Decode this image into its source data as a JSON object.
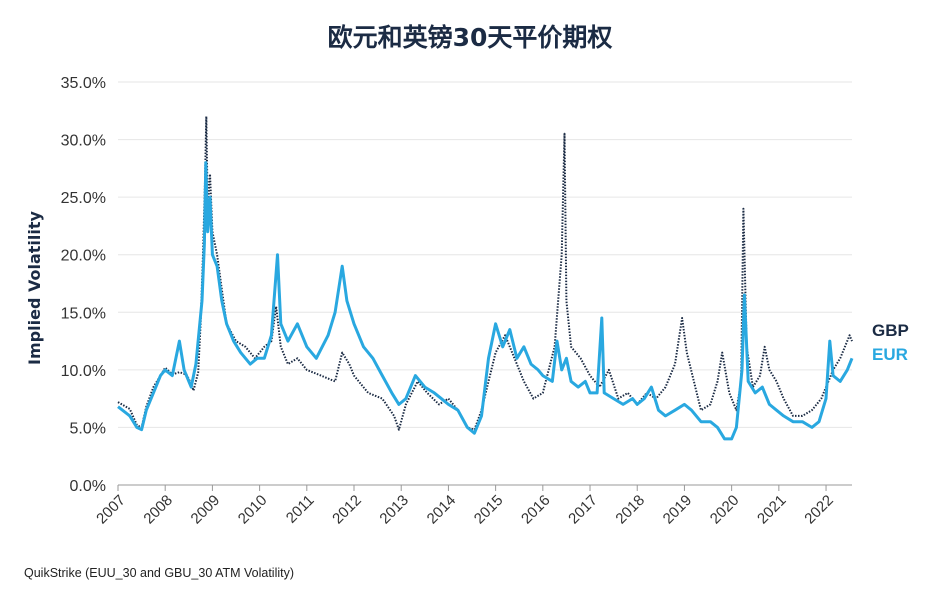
{
  "chart_data": {
    "type": "line",
    "title": "欧元和英镑30天平价期权",
    "ylabel": "Implied Volatility",
    "xlabel": "",
    "ylim": [
      0,
      35
    ],
    "xlim": [
      2007,
      2022.55
    ],
    "y_ticks": [
      "0.0%",
      "5.0%",
      "10.0%",
      "15.0%",
      "20.0%",
      "25.0%",
      "30.0%",
      "35.0%"
    ],
    "x_ticks": [
      "2007",
      "2008",
      "2009",
      "2010",
      "2011",
      "2012",
      "2013",
      "2014",
      "2015",
      "2016",
      "2017",
      "2018",
      "2019",
      "2020",
      "2021",
      "2022"
    ],
    "grid": "horizontal",
    "legend": "right",
    "series": [
      {
        "name": "GBP",
        "color": "#1b2b44",
        "style": "dotted",
        "points": [
          [
            2007.0,
            7.2
          ],
          [
            2007.25,
            6.6
          ],
          [
            2007.4,
            5.2
          ],
          [
            2007.5,
            5.0
          ],
          [
            2007.6,
            6.8
          ],
          [
            2007.75,
            8.5
          ],
          [
            2007.9,
            9.5
          ],
          [
            2008.0,
            10.2
          ],
          [
            2008.15,
            9.6
          ],
          [
            2008.3,
            9.8
          ],
          [
            2008.45,
            9.6
          ],
          [
            2008.55,
            8.8
          ],
          [
            2008.6,
            8.2
          ],
          [
            2008.7,
            9.8
          ],
          [
            2008.75,
            14.0
          ],
          [
            2008.8,
            20.0
          ],
          [
            2008.84,
            26.0
          ],
          [
            2008.87,
            32.0
          ],
          [
            2008.9,
            24.0
          ],
          [
            2008.95,
            27.0
          ],
          [
            2009.0,
            22.0
          ],
          [
            2009.1,
            20.0
          ],
          [
            2009.2,
            17.0
          ],
          [
            2009.3,
            14.0
          ],
          [
            2009.5,
            12.5
          ],
          [
            2009.7,
            12.0
          ],
          [
            2009.9,
            11.0
          ],
          [
            2010.1,
            12.0
          ],
          [
            2010.25,
            12.5
          ],
          [
            2010.35,
            15.5
          ],
          [
            2010.45,
            12.0
          ],
          [
            2010.6,
            10.5
          ],
          [
            2010.8,
            11.0
          ],
          [
            2011.0,
            10.0
          ],
          [
            2011.3,
            9.5
          ],
          [
            2011.6,
            9.0
          ],
          [
            2011.75,
            11.5
          ],
          [
            2011.9,
            10.5
          ],
          [
            2012.0,
            9.5
          ],
          [
            2012.3,
            8.0
          ],
          [
            2012.6,
            7.5
          ],
          [
            2012.85,
            6.0
          ],
          [
            2012.95,
            4.8
          ],
          [
            2013.1,
            7.0
          ],
          [
            2013.35,
            9.0
          ],
          [
            2013.55,
            8.0
          ],
          [
            2013.8,
            7.0
          ],
          [
            2014.0,
            7.5
          ],
          [
            2014.2,
            6.5
          ],
          [
            2014.4,
            5.0
          ],
          [
            2014.55,
            4.8
          ],
          [
            2014.7,
            6.5
          ],
          [
            2014.85,
            9.0
          ],
          [
            2015.0,
            11.5
          ],
          [
            2015.2,
            13.0
          ],
          [
            2015.4,
            11.0
          ],
          [
            2015.6,
            9.0
          ],
          [
            2015.8,
            7.5
          ],
          [
            2016.0,
            8.0
          ],
          [
            2016.25,
            12.0
          ],
          [
            2016.4,
            20.0
          ],
          [
            2016.46,
            30.5
          ],
          [
            2016.5,
            16.0
          ],
          [
            2016.6,
            12.0
          ],
          [
            2016.8,
            11.0
          ],
          [
            2017.0,
            9.5
          ],
          [
            2017.2,
            8.5
          ],
          [
            2017.4,
            10.0
          ],
          [
            2017.6,
            7.5
          ],
          [
            2017.8,
            8.0
          ],
          [
            2018.0,
            7.0
          ],
          [
            2018.2,
            8.0
          ],
          [
            2018.4,
            7.5
          ],
          [
            2018.6,
            8.5
          ],
          [
            2018.8,
            10.5
          ],
          [
            2018.95,
            14.5
          ],
          [
            2019.05,
            11.5
          ],
          [
            2019.2,
            9.0
          ],
          [
            2019.35,
            6.5
          ],
          [
            2019.55,
            7.0
          ],
          [
            2019.7,
            9.0
          ],
          [
            2019.8,
            11.5
          ],
          [
            2019.95,
            8.0
          ],
          [
            2020.1,
            6.5
          ],
          [
            2020.2,
            9.0
          ],
          [
            2020.25,
            24.0
          ],
          [
            2020.32,
            12.0
          ],
          [
            2020.45,
            8.5
          ],
          [
            2020.6,
            9.5
          ],
          [
            2020.7,
            12.0
          ],
          [
            2020.8,
            10.0
          ],
          [
            2020.95,
            9.0
          ],
          [
            2021.1,
            7.5
          ],
          [
            2021.3,
            6.0
          ],
          [
            2021.5,
            6.0
          ],
          [
            2021.7,
            6.5
          ],
          [
            2021.9,
            7.5
          ],
          [
            2022.05,
            9.0
          ],
          [
            2022.15,
            10.0
          ],
          [
            2022.3,
            11.0
          ],
          [
            2022.4,
            12.0
          ],
          [
            2022.5,
            13.0
          ],
          [
            2022.55,
            12.5
          ]
        ]
      },
      {
        "name": "EUR",
        "color": "#29a8e0",
        "style": "solid",
        "points": [
          [
            2007.0,
            6.8
          ],
          [
            2007.25,
            6.0
          ],
          [
            2007.4,
            5.0
          ],
          [
            2007.5,
            4.8
          ],
          [
            2007.6,
            6.5
          ],
          [
            2007.75,
            8.0
          ],
          [
            2007.9,
            9.5
          ],
          [
            2008.0,
            10.0
          ],
          [
            2008.15,
            9.5
          ],
          [
            2008.3,
            12.5
          ],
          [
            2008.4,
            10.0
          ],
          [
            2008.55,
            8.5
          ],
          [
            2008.65,
            10.5
          ],
          [
            2008.78,
            16.0
          ],
          [
            2008.83,
            21.0
          ],
          [
            2008.86,
            28.0
          ],
          [
            2008.9,
            22.0
          ],
          [
            2008.95,
            25.0
          ],
          [
            2009.0,
            20.0
          ],
          [
            2009.1,
            19.0
          ],
          [
            2009.2,
            16.0
          ],
          [
            2009.3,
            14.0
          ],
          [
            2009.45,
            12.5
          ],
          [
            2009.6,
            11.5
          ],
          [
            2009.8,
            10.5
          ],
          [
            2009.95,
            11.0
          ],
          [
            2010.1,
            11.0
          ],
          [
            2010.25,
            13.0
          ],
          [
            2010.38,
            20.0
          ],
          [
            2010.45,
            14.0
          ],
          [
            2010.6,
            12.5
          ],
          [
            2010.8,
            14.0
          ],
          [
            2011.0,
            12.0
          ],
          [
            2011.2,
            11.0
          ],
          [
            2011.45,
            13.0
          ],
          [
            2011.6,
            15.0
          ],
          [
            2011.75,
            19.0
          ],
          [
            2011.85,
            16.0
          ],
          [
            2012.0,
            14.0
          ],
          [
            2012.2,
            12.0
          ],
          [
            2012.4,
            11.0
          ],
          [
            2012.6,
            9.5
          ],
          [
            2012.8,
            8.0
          ],
          [
            2012.95,
            7.0
          ],
          [
            2013.1,
            7.5
          ],
          [
            2013.3,
            9.5
          ],
          [
            2013.5,
            8.5
          ],
          [
            2013.7,
            8.0
          ],
          [
            2013.85,
            7.5
          ],
          [
            2014.0,
            7.0
          ],
          [
            2014.2,
            6.5
          ],
          [
            2014.4,
            5.0
          ],
          [
            2014.55,
            4.5
          ],
          [
            2014.7,
            6.0
          ],
          [
            2014.85,
            11.0
          ],
          [
            2015.0,
            14.0
          ],
          [
            2015.15,
            12.0
          ],
          [
            2015.3,
            13.5
          ],
          [
            2015.45,
            11.0
          ],
          [
            2015.6,
            12.0
          ],
          [
            2015.75,
            10.5
          ],
          [
            2015.9,
            10.0
          ],
          [
            2016.0,
            9.5
          ],
          [
            2016.2,
            9.0
          ],
          [
            2016.3,
            12.5
          ],
          [
            2016.4,
            10.0
          ],
          [
            2016.5,
            11.0
          ],
          [
            2016.6,
            9.0
          ],
          [
            2016.75,
            8.5
          ],
          [
            2016.9,
            9.0
          ],
          [
            2017.0,
            8.0
          ],
          [
            2017.15,
            8.0
          ],
          [
            2017.25,
            14.5
          ],
          [
            2017.3,
            8.0
          ],
          [
            2017.5,
            7.5
          ],
          [
            2017.7,
            7.0
          ],
          [
            2017.9,
            7.5
          ],
          [
            2018.0,
            7.0
          ],
          [
            2018.15,
            7.5
          ],
          [
            2018.3,
            8.5
          ],
          [
            2018.45,
            6.5
          ],
          [
            2018.6,
            6.0
          ],
          [
            2018.8,
            6.5
          ],
          [
            2019.0,
            7.0
          ],
          [
            2019.15,
            6.5
          ],
          [
            2019.35,
            5.5
          ],
          [
            2019.55,
            5.5
          ],
          [
            2019.7,
            5.0
          ],
          [
            2019.85,
            4.0
          ],
          [
            2020.0,
            4.0
          ],
          [
            2020.1,
            5.0
          ],
          [
            2020.22,
            10.0
          ],
          [
            2020.27,
            16.5
          ],
          [
            2020.35,
            9.0
          ],
          [
            2020.5,
            8.0
          ],
          [
            2020.65,
            8.5
          ],
          [
            2020.8,
            7.0
          ],
          [
            2020.95,
            6.5
          ],
          [
            2021.1,
            6.0
          ],
          [
            2021.3,
            5.5
          ],
          [
            2021.5,
            5.5
          ],
          [
            2021.7,
            5.0
          ],
          [
            2021.85,
            5.5
          ],
          [
            2022.0,
            7.5
          ],
          [
            2022.08,
            12.5
          ],
          [
            2022.15,
            9.5
          ],
          [
            2022.3,
            9.0
          ],
          [
            2022.45,
            10.0
          ],
          [
            2022.55,
            11.0
          ]
        ]
      }
    ]
  },
  "source": "QuikStrike (EUU_30 and GBU_30 ATM Volatility)"
}
